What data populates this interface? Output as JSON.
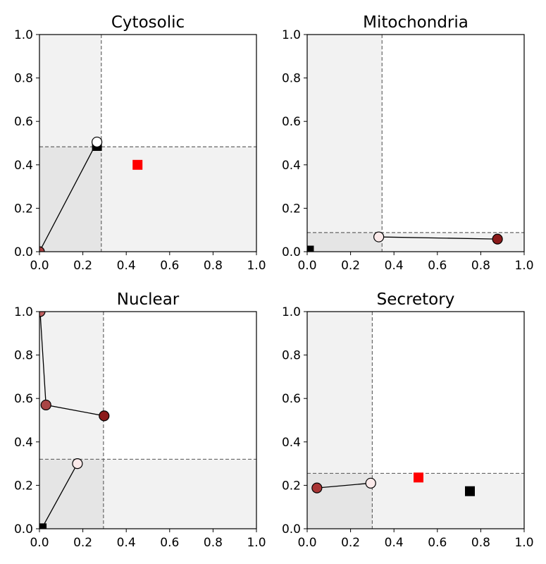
{
  "chart_data": [
    {
      "type": "scatter",
      "title": "Cytosolic",
      "xlim": [
        0,
        1
      ],
      "ylim": [
        0,
        1
      ],
      "xticks": [
        "0.0",
        "0.2",
        "0.4",
        "0.6",
        "0.8",
        "1.0"
      ],
      "yticks": [
        "0.0",
        "0.2",
        "0.4",
        "0.6",
        "0.8",
        "1.0"
      ],
      "threshold_x": 0.285,
      "threshold_y": 0.483,
      "path": [
        {
          "x": 0.0,
          "y": 0.0,
          "color": "#a94040"
        },
        {
          "x": 0.265,
          "y": 0.505,
          "color": "#ffffff"
        }
      ],
      "markers": [
        {
          "x": 0.265,
          "y": 0.487,
          "color": "#000000",
          "shape": "square"
        },
        {
          "x": 0.452,
          "y": 0.4,
          "color": "#ff0000",
          "shape": "square"
        }
      ]
    },
    {
      "type": "scatter",
      "title": "Mitochondria",
      "xlim": [
        0,
        1
      ],
      "ylim": [
        0,
        1
      ],
      "xticks": [
        "0.0",
        "0.2",
        "0.4",
        "0.6",
        "0.8",
        "1.0"
      ],
      "yticks": [
        "0.0",
        "0.2",
        "0.4",
        "0.6",
        "0.8",
        "1.0"
      ],
      "threshold_x": 0.345,
      "threshold_y": 0.088,
      "path": [
        {
          "x": 0.33,
          "y": 0.068,
          "color": "#fbeaea"
        },
        {
          "x": 0.877,
          "y": 0.058,
          "color": "#8b1a1a"
        }
      ],
      "markers": [
        {
          "x": 0.008,
          "y": 0.005,
          "color": "#000000",
          "shape": "square"
        }
      ]
    },
    {
      "type": "scatter",
      "title": "Nuclear",
      "xlim": [
        0,
        1
      ],
      "ylim": [
        0,
        1
      ],
      "xticks": [
        "0.0",
        "0.2",
        "0.4",
        "0.6",
        "0.8",
        "1.0"
      ],
      "yticks": [
        "0.0",
        "0.2",
        "0.4",
        "0.6",
        "0.8",
        "1.0"
      ],
      "threshold_x": 0.295,
      "threshold_y": 0.32,
      "path": [
        {
          "x": 0.298,
          "y": 0.52,
          "color": "#8b1a1a"
        },
        {
          "x": 0.03,
          "y": 0.57,
          "color": "#a94545"
        },
        {
          "x": 0.003,
          "y": 1.0,
          "color": "#c06060"
        }
      ],
      "path2": [
        {
          "x": 0.01,
          "y": 0.0,
          "color": "#000000"
        },
        {
          "x": 0.175,
          "y": 0.3,
          "color": "#fbeaea"
        }
      ],
      "markers": [
        {
          "x": 0.01,
          "y": 0.002,
          "color": "#000000",
          "shape": "square"
        }
      ]
    },
    {
      "type": "scatter",
      "title": "Secretory",
      "xlim": [
        0,
        1
      ],
      "ylim": [
        0,
        1
      ],
      "xticks": [
        "0.0",
        "0.2",
        "0.4",
        "0.6",
        "0.8",
        "1.0"
      ],
      "yticks": [
        "0.0",
        "0.2",
        "0.4",
        "0.6",
        "0.8",
        "1.0"
      ],
      "threshold_x": 0.3,
      "threshold_y": 0.255,
      "path": [
        {
          "x": 0.045,
          "y": 0.188,
          "color": "#a93535"
        },
        {
          "x": 0.293,
          "y": 0.21,
          "color": "#fbeaea"
        }
      ],
      "markers": [
        {
          "x": 0.513,
          "y": 0.236,
          "color": "#ff0000",
          "shape": "square"
        },
        {
          "x": 0.75,
          "y": 0.173,
          "color": "#000000",
          "shape": "square"
        }
      ]
    }
  ]
}
